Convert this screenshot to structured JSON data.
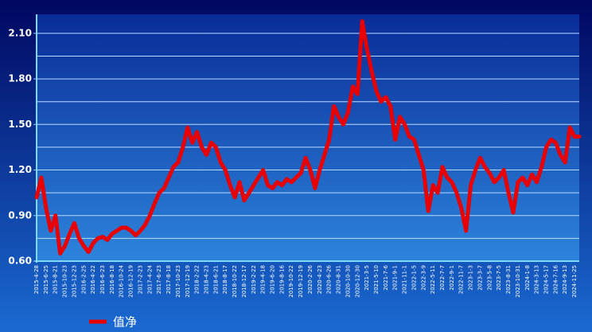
{
  "chart_data": {
    "type": "line",
    "categories": [
      "2015-4-28",
      null,
      "2015-6-25",
      null,
      "2015-8-21",
      null,
      "2015-10-23",
      null,
      "2015-12-23",
      null,
      "2016-2-25",
      null,
      "2016-4-22",
      null,
      "2016-6-23",
      null,
      "2016-8-18",
      null,
      "2016-10-24",
      null,
      "2016-12-19",
      null,
      "2017-2-23",
      null,
      "2017-4-24",
      null,
      "2017-6-23",
      null,
      "2017-8-18",
      null,
      "2017-10-23",
      null,
      "2017-12-19",
      null,
      "2018-2-22",
      null,
      "2018-4-23",
      null,
      "2018-6-21",
      null,
      "2018-8-17",
      null,
      "2018-10-22",
      null,
      "2018-12-17",
      null,
      "2019-2-22",
      null,
      "2019-4-18",
      null,
      "2019-6-20",
      null,
      "2019-8-16",
      null,
      "2019-10-22",
      null,
      "2019-12-19",
      null,
      "2020-2-26",
      null,
      "2020-4-23",
      null,
      "2020-6-26",
      null,
      "2020-8-31",
      null,
      "2020-10-30",
      null,
      "2020-12-30",
      null,
      "2021-3-5",
      null,
      "2021-5-10",
      null,
      "2021-7-6",
      null,
      "2021-9-1",
      null,
      "2021-11-1",
      null,
      "2022-1-5",
      null,
      "2022-3-9",
      null,
      "2022-5-11",
      null,
      "2022-7-7",
      null,
      "2022-9-1",
      null,
      "2022-11-7",
      null,
      "2023-1-3",
      null,
      "2023-3-7",
      null,
      "2023-5-8",
      null,
      "2023-7-5",
      null,
      "2023-8-31",
      null,
      "2023-10-31",
      null,
      "2024-1-8",
      null,
      "2024-3-13",
      null,
      "2024-5-17",
      null,
      "2024-7-16",
      null,
      "2024-9-13",
      null,
      "2024-11-25",
      null
    ],
    "series": [
      {
        "name": "值净",
        "color": "#e80000",
        "values": [
          1.02,
          1.15,
          0.95,
          0.8,
          0.9,
          0.65,
          0.7,
          0.78,
          0.85,
          0.75,
          0.7,
          0.66,
          0.72,
          0.75,
          0.76,
          0.74,
          0.78,
          0.8,
          0.82,
          0.82,
          0.8,
          0.77,
          0.8,
          0.84,
          0.9,
          0.98,
          1.05,
          1.08,
          1.15,
          1.22,
          1.25,
          1.35,
          1.48,
          1.38,
          1.45,
          1.35,
          1.3,
          1.38,
          1.35,
          1.25,
          1.2,
          1.1,
          1.02,
          1.12,
          1.0,
          1.05,
          1.1,
          1.15,
          1.2,
          1.1,
          1.08,
          1.12,
          1.1,
          1.14,
          1.12,
          1.15,
          1.18,
          1.28,
          1.2,
          1.08,
          1.2,
          1.3,
          1.4,
          1.62,
          1.55,
          1.5,
          1.58,
          1.75,
          1.7,
          2.18,
          2.0,
          1.85,
          1.72,
          1.65,
          1.68,
          1.62,
          1.4,
          1.55,
          1.5,
          1.42,
          1.4,
          1.3,
          1.2,
          0.93,
          1.1,
          1.05,
          1.22,
          1.15,
          1.12,
          1.05,
          0.95,
          0.8,
          1.1,
          1.2,
          1.28,
          1.22,
          1.18,
          1.12,
          1.15,
          1.2,
          1.05,
          0.92,
          1.12,
          1.15,
          1.1,
          1.17,
          1.12,
          1.22,
          1.35,
          1.4,
          1.38,
          1.3,
          1.25,
          1.48,
          1.42,
          1.42
        ]
      }
    ],
    "ylim": [
      0.6,
      2.225
    ],
    "yticks": [
      {
        "value": 0.6,
        "label": "0.60"
      },
      {
        "value": 0.9,
        "label": "0.90"
      },
      {
        "value": 1.2,
        "label": "1.20"
      },
      {
        "value": 1.5,
        "label": "1.50"
      },
      {
        "value": 1.8,
        "label": "1.80"
      },
      {
        "value": 2.1,
        "label": "2.10"
      }
    ],
    "minor_yticks": [
      0.75,
      1.05,
      1.35,
      1.65,
      1.95
    ],
    "grid": true,
    "legend": "bottom-left"
  }
}
